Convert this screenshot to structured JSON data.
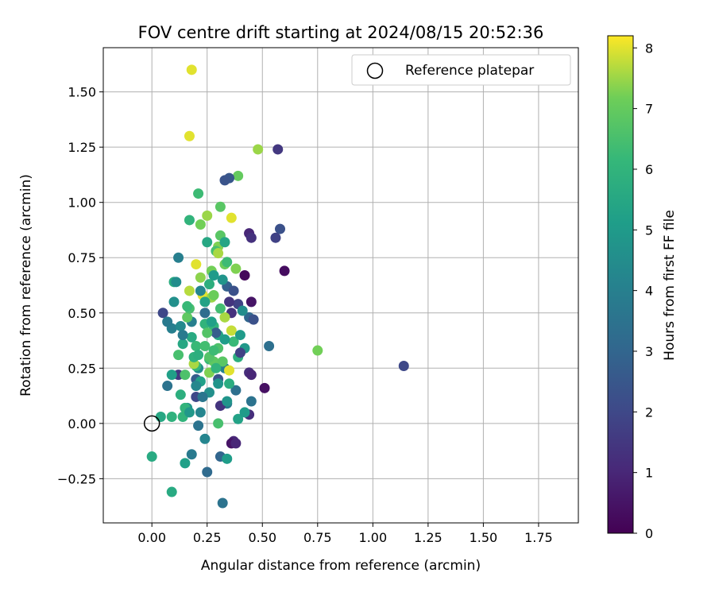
{
  "chart_data": {
    "type": "scatter",
    "title": "FOV centre drift starting at 2024/08/15 20:52:36",
    "xlabel": "Angular distance from reference (arcmin)",
    "ylabel": "Rotation from reference (arcmin)",
    "xlim": [
      -0.22,
      1.93
    ],
    "ylim": [
      -0.45,
      1.7
    ],
    "xticks": [
      "0.00",
      "0.25",
      "0.50",
      "0.75",
      "1.00",
      "1.25",
      "1.50",
      "1.75"
    ],
    "yticks": [
      "−0.25",
      "0.00",
      "0.25",
      "0.50",
      "0.75",
      "1.00",
      "1.25",
      "1.50"
    ],
    "xtick_values": [
      0,
      0.25,
      0.5,
      0.75,
      1.0,
      1.25,
      1.5,
      1.75
    ],
    "ytick_values": [
      -0.25,
      0,
      0.25,
      0.5,
      0.75,
      1.0,
      1.25,
      1.5
    ],
    "grid": true,
    "legend": {
      "placement": "top-right",
      "label": "Reference platepar"
    },
    "reference_point": {
      "x": 0.0,
      "y": 0.0
    },
    "colorbar": {
      "label": "Hours from first FF file",
      "range": [
        0,
        8.2
      ],
      "ticks": [
        "0",
        "1",
        "2",
        "3",
        "4",
        "5",
        "6",
        "7",
        "8"
      ],
      "tick_values": [
        0,
        1,
        2,
        3,
        4,
        5,
        6,
        7,
        8
      ],
      "colormap": "viridis"
    },
    "series": [
      {
        "x": [
          0.18,
          0.17,
          0.48,
          0.57,
          0.39,
          0.35,
          0.33,
          0.21,
          0.31,
          0.36,
          0.17,
          0.22,
          0.58,
          0.44,
          0.45,
          0.56,
          0.25,
          0.3,
          0.29,
          0.12,
          0.2,
          0.38,
          0.6,
          0.42,
          0.34,
          0.17,
          0.23,
          0.27,
          0.45,
          0.39,
          0.05,
          0.1,
          0.36,
          0.33,
          0.44,
          0.46,
          0.18,
          0.28,
          0.75,
          1.14,
          0.53,
          0.42,
          0.39,
          0.26,
          0.44,
          0.45,
          0.3,
          0.12,
          0.2,
          0.07,
          0.51,
          0.45,
          0.34,
          0.16,
          0.22,
          0.14,
          0.39,
          0.3,
          0.21,
          0.31,
          0.37,
          0.44,
          0.09,
          0.25,
          0.34,
          0.36,
          0.38,
          0.42,
          0.15,
          0.18,
          0.24,
          0.32,
          0.09,
          0.13,
          0.2,
          0.31,
          0.34,
          0.38,
          0.21,
          0.2,
          0.3,
          0.24,
          0.16,
          0.17,
          0.24,
          0.0,
          0.1,
          0.32,
          0.33,
          0.3,
          0.09,
          0.12,
          0.2,
          0.28,
          0.37,
          0.29,
          0.24,
          0.26,
          0.41,
          0.27,
          0.22,
          0.14,
          0.26,
          0.3,
          0.36,
          0.35,
          0.37,
          0.34,
          0.28,
          0.25,
          0.31,
          0.15,
          0.19,
          0.22,
          0.26,
          0.33,
          0.4,
          0.07,
          0.13,
          0.18,
          0.24,
          0.32,
          0.35,
          0.4,
          0.19,
          0.26,
          0.3,
          0.04,
          0.09,
          0.15,
          0.2,
          0.23,
          0.14,
          0.27,
          0.31,
          0.28,
          0.22,
          0.33,
          0.11,
          0.16,
          0.21,
          0.25,
          0.29,
          0.35,
          0.17,
          0.23,
          0.28,
          0.33
        ],
        "y": [
          1.6,
          1.3,
          1.24,
          1.24,
          1.12,
          1.11,
          1.1,
          1.04,
          0.98,
          0.93,
          0.92,
          0.9,
          0.88,
          0.86,
          0.84,
          0.84,
          0.82,
          0.8,
          0.78,
          0.75,
          0.72,
          0.7,
          0.69,
          0.67,
          0.62,
          0.6,
          0.58,
          0.57,
          0.55,
          0.54,
          0.5,
          0.55,
          0.5,
          0.48,
          0.48,
          0.47,
          0.46,
          0.44,
          0.33,
          0.26,
          0.35,
          0.34,
          0.3,
          0.29,
          0.23,
          0.22,
          0.2,
          0.22,
          0.2,
          0.17,
          0.16,
          0.1,
          0.09,
          0.07,
          0.05,
          0.03,
          0.02,
          0.0,
          -0.01,
          -0.15,
          -0.08,
          0.04,
          -0.31,
          -0.22,
          -0.16,
          -0.09,
          -0.09,
          0.05,
          -0.18,
          -0.14,
          -0.07,
          -0.36,
          0.03,
          0.13,
          0.12,
          0.08,
          0.1,
          0.15,
          0.25,
          0.35,
          0.4,
          0.45,
          0.48,
          0.52,
          0.55,
          -0.15,
          0.64,
          0.65,
          0.72,
          0.77,
          0.43,
          0.31,
          0.26,
          0.28,
          0.37,
          0.41,
          0.5,
          0.63,
          0.51,
          0.69,
          0.6,
          0.36,
          0.3,
          0.34,
          0.42,
          0.55,
          0.6,
          0.73,
          0.67,
          0.94,
          0.85,
          0.22,
          0.27,
          0.19,
          0.14,
          0.25,
          0.32,
          0.46,
          0.44,
          0.39,
          0.35,
          0.28,
          0.24,
          0.4,
          0.3,
          0.23,
          0.18,
          0.03,
          0.22,
          0.07,
          0.17,
          0.12,
          0.4,
          0.46,
          0.52,
          0.58,
          0.66,
          0.82,
          0.64,
          0.53,
          0.31,
          0.41,
          0.25,
          0.18,
          0.05,
          0.12,
          0.33,
          0.38
        ],
        "c": [
          8.0,
          8.0,
          7.5,
          1.5,
          7.0,
          2.5,
          2.4,
          6.3,
          6.8,
          8.0,
          6.0,
          7.2,
          2.3,
          1.0,
          1.3,
          1.8,
          5.5,
          7.3,
          6.5,
          4.0,
          8.0,
          7.3,
          0.3,
          0.2,
          2.8,
          7.7,
          8.0,
          7.5,
          0.5,
          1.8,
          2.0,
          4.6,
          1.3,
          7.6,
          3.0,
          2.3,
          4.0,
          6.0,
          7.2,
          2.0,
          3.4,
          4.9,
          5.8,
          6.2,
          1.2,
          1.0,
          2.4,
          1.5,
          2.7,
          3.5,
          0.4,
          3.5,
          3.8,
          4.8,
          4.2,
          6.0,
          5.3,
          6.5,
          3.5,
          3.0,
          1.0,
          1.2,
          5.6,
          3.2,
          5.1,
          0.5,
          1.0,
          5.0,
          5.2,
          3.8,
          4.2,
          3.5,
          5.9,
          5.8,
          2.0,
          1.4,
          4.8,
          3.4,
          4.5,
          6.2,
          5.5,
          6.0,
          6.9,
          6.5,
          5.3,
          5.6,
          5.7,
          4.8,
          7.1,
          7.6,
          4.0,
          6.5,
          6.1,
          6.9,
          6.2,
          2.7,
          3.3,
          5.8,
          4.5,
          7.2,
          4.2,
          5.5,
          6.7,
          6.6,
          7.8,
          1.4,
          2.3,
          6.3,
          5.0,
          7.5,
          6.8,
          6.6,
          7.6,
          5.2,
          4.6,
          4.0,
          1.8,
          3.8,
          4.4,
          5.6,
          6.4,
          6.8,
          8.0,
          5.0,
          5.9,
          7.3,
          4.8,
          5.5,
          5.2,
          6.0,
          4.3,
          6.1,
          3.8,
          5.2,
          6.4,
          7.1,
          7.4,
          5.4,
          4.5,
          6.2,
          5.8,
          6.7,
          6.0,
          5.7,
          4.9,
          3.6,
          6.3,
          5.1
        ]
      }
    ]
  }
}
